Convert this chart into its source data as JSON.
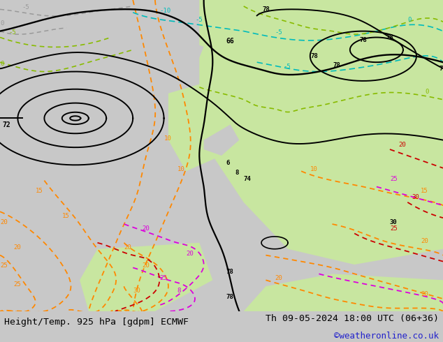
{
  "title_left": "Height/Temp. 925 hPa [gdpm] ECMWF",
  "title_right": "Th 09-05-2024 18:00 UTC (06+36)",
  "copyright": "©weatheronline.co.uk",
  "bg_color": "#c8c8c8",
  "land_green": "#c8e6a0",
  "sea_gray": "#c8c8c8",
  "bottom_bar_color": "#c8c8c8",
  "title_fontsize": 9.5,
  "copyright_color": "#2222cc",
  "figsize": [
    6.34,
    4.9
  ],
  "dpi": 100,
  "black": "#000000",
  "orange": "#ff8800",
  "magenta": "#dd00dd",
  "red": "#cc0000",
  "cyan": "#00bbbb",
  "lime": "#88bb00",
  "gray_dash": "#999999"
}
